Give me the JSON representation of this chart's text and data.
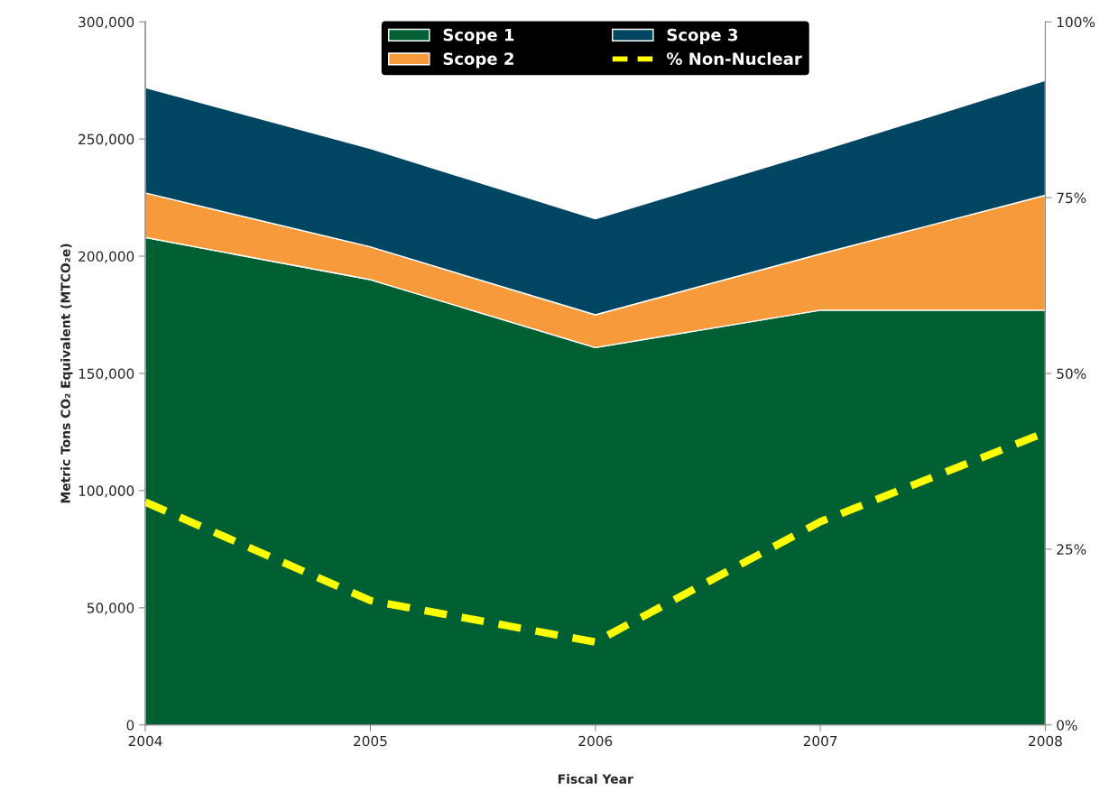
{
  "chart_data": {
    "type": "area",
    "stacked": true,
    "xlabel": "Fiscal Year",
    "ylabel": "Metric Tons CO₂ Equivalent (MTCO₂e)",
    "categories": [
      "2004",
      "2005",
      "2006",
      "2007",
      "2008"
    ],
    "series": [
      {
        "name": "Scope 1",
        "color": "#006033",
        "values": [
          208000,
          190000,
          161000,
          177000,
          177000
        ]
      },
      {
        "name": "Scope 2",
        "color": "#f79a3b",
        "values": [
          19000,
          14000,
          14000,
          24000,
          49000
        ]
      },
      {
        "name": "Scope 3",
        "color": "#004562",
        "values": [
          45000,
          42000,
          41000,
          44000,
          49000
        ]
      },
      {
        "name": "% Non-Nuclear",
        "type": "line",
        "axis": "y2",
        "line_style": "dashed",
        "color": "#ffff00",
        "values": [
          31.7,
          17.7,
          11.8,
          28.9,
          41.6
        ]
      }
    ],
    "ylim": [
      0,
      300000
    ],
    "yticks": [
      0,
      {
        "value": 50000,
        "label": "50,000"
      },
      {
        "value": 100000,
        "label": "100,000"
      },
      {
        "value": 150000,
        "label": "150,000"
      },
      {
        "value": 200000,
        "label": "200,000"
      },
      {
        "value": 250000,
        "label": "250,000"
      },
      {
        "value": 300000,
        "label": "300,000"
      }
    ],
    "y2lim": [
      0,
      100
    ],
    "y2ticks": [
      {
        "value": 0,
        "label": "0%"
      },
      {
        "value": 25,
        "label": "25%"
      },
      {
        "value": 50,
        "label": "50%"
      },
      {
        "value": 75,
        "label": "75%"
      },
      {
        "value": 100,
        "label": "100%"
      }
    ],
    "grid": false,
    "legend": "top"
  }
}
